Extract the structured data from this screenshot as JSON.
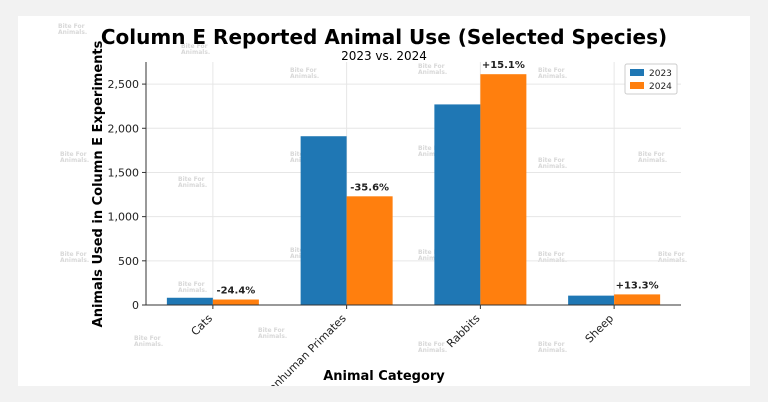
{
  "chart_data": {
    "type": "bar",
    "title": "Column E Reported Animal Use (Selected Species)",
    "subtitle": "2023 vs. 2024",
    "xlabel": "Animal Category",
    "ylabel": "Animals Used in Column E Experiments",
    "categories": [
      "Cats",
      "Nonhuman Primates",
      "Rabbits",
      "Sheep"
    ],
    "series": [
      {
        "name": "2023",
        "color": "#1f77b4",
        "values": [
          82,
          1910,
          2270,
          106
        ]
      },
      {
        "name": "2024",
        "color": "#ff7f0e",
        "values": [
          62,
          1230,
          2612,
          120
        ]
      }
    ],
    "annotations": [
      "-24.4%",
      "-35.6%",
      "+15.1%",
      "+13.3%"
    ],
    "yticks": [
      0,
      500,
      1000,
      1500,
      2000,
      2500
    ],
    "ytick_labels": [
      "0",
      "500",
      "1,000",
      "1,500",
      "2,000",
      "2,500"
    ],
    "ylim": [
      0,
      2750
    ],
    "grid": true,
    "legend_position": "top-right"
  },
  "watermark": {
    "line1": "Bite",
    "line1_suffix": "For",
    "line2": "Animals."
  }
}
